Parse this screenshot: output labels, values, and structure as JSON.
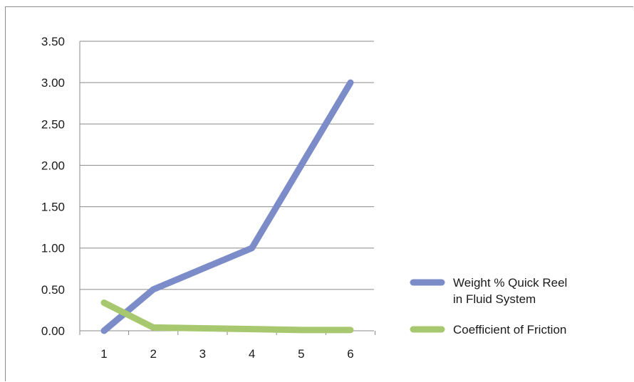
{
  "chart_data": {
    "type": "line",
    "categories": [
      "1",
      "2",
      "3",
      "4",
      "5",
      "6"
    ],
    "series": [
      {
        "name": "Weight % Quick Reel in Fluid System",
        "values": [
          0.0,
          0.5,
          0.75,
          1.0,
          2.0,
          3.0
        ],
        "color": "#7b8cc8"
      },
      {
        "name": "Coefficient of Friction",
        "values": [
          0.34,
          0.04,
          0.03,
          0.02,
          0.01,
          0.01
        ],
        "color": "#a7c86e"
      }
    ],
    "ylim": [
      0,
      3.5
    ],
    "yticks": [
      "0.00",
      "0.50",
      "1.00",
      "1.50",
      "2.00",
      "2.50",
      "3.00",
      "3.50"
    ],
    "legend": {
      "position": "right",
      "items": [
        {
          "lines": [
            "Weight % Quick Reel",
            "in Fluid System"
          ],
          "color": "#7b8cc8"
        },
        {
          "lines": [
            "Coefficient of Friction"
          ],
          "color": "#a7c86e"
        }
      ]
    },
    "grid": true,
    "title": "",
    "xlabel": "",
    "ylabel": ""
  }
}
